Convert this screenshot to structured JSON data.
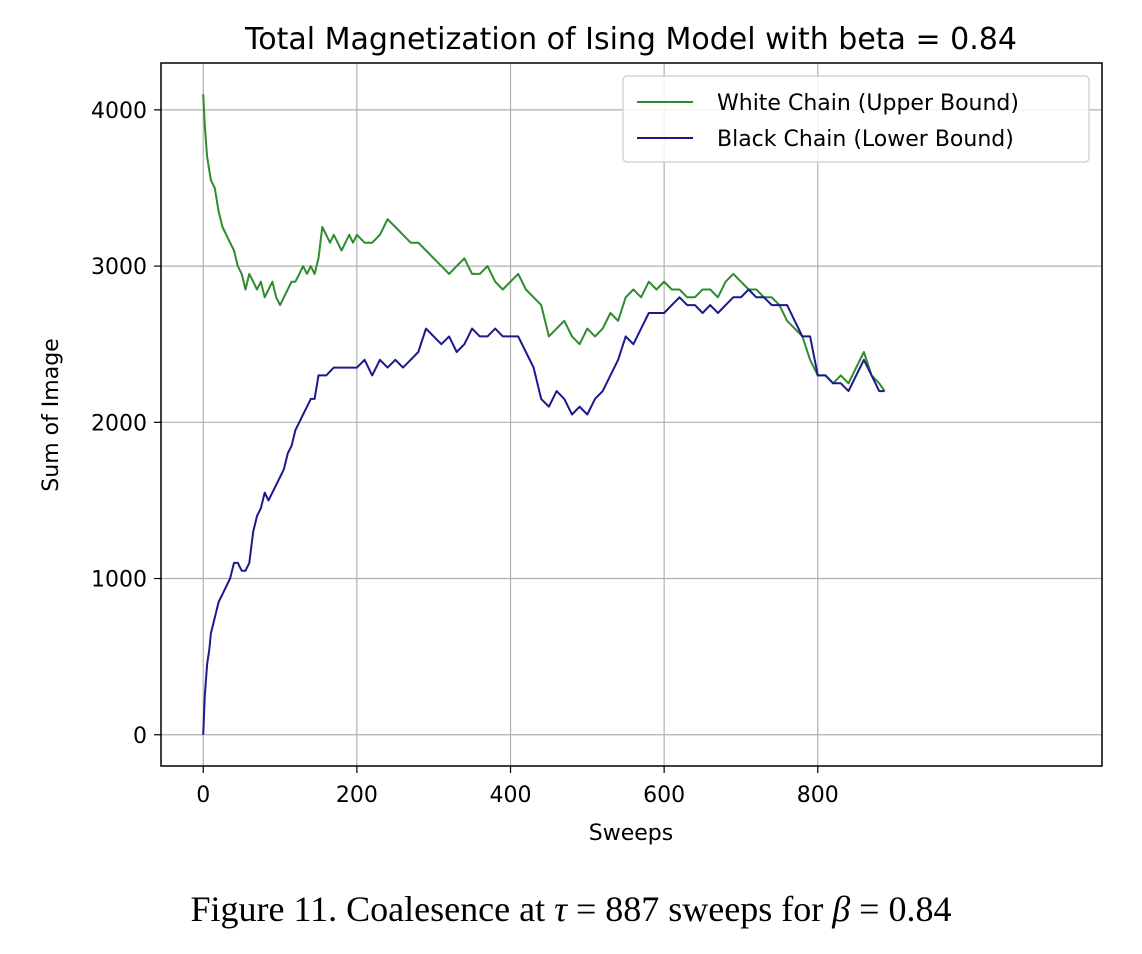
{
  "chart_data": {
    "type": "line",
    "title": "Total Magnetization of Ising Model with beta = 0.84",
    "xlabel": "Sweeps",
    "ylabel": "Sum of Image",
    "xlim": [
      -55,
      1170
    ],
    "ylim": [
      -200,
      4300
    ],
    "xticks": [
      0,
      200,
      400,
      600,
      800
    ],
    "yticks": [
      0,
      1000,
      2000,
      3000,
      4000
    ],
    "grid": true,
    "legend_position": "top-right",
    "series": [
      {
        "name": "White Chain (Upper Bound)",
        "color": "#2e8b2e",
        "x": [
          0,
          2,
          5,
          10,
          15,
          20,
          25,
          30,
          35,
          40,
          45,
          50,
          55,
          60,
          65,
          70,
          75,
          80,
          85,
          90,
          95,
          100,
          105,
          110,
          115,
          120,
          125,
          130,
          135,
          140,
          145,
          150,
          155,
          160,
          165,
          170,
          175,
          180,
          185,
          190,
          195,
          200,
          210,
          220,
          230,
          240,
          250,
          260,
          270,
          280,
          290,
          300,
          310,
          320,
          330,
          340,
          350,
          360,
          370,
          380,
          390,
          400,
          410,
          420,
          430,
          440,
          450,
          460,
          470,
          480,
          490,
          500,
          510,
          520,
          530,
          540,
          550,
          560,
          570,
          580,
          590,
          600,
          610,
          620,
          630,
          640,
          650,
          660,
          670,
          680,
          690,
          700,
          710,
          720,
          730,
          740,
          750,
          760,
          770,
          780,
          790,
          800,
          810,
          820,
          830,
          840,
          850,
          860,
          870,
          880,
          887
        ],
        "values": [
          4100,
          3900,
          3700,
          3550,
          3500,
          3350,
          3250,
          3200,
          3150,
          3100,
          3000,
          2950,
          2850,
          2950,
          2900,
          2850,
          2900,
          2800,
          2850,
          2900,
          2800,
          2750,
          2800,
          2850,
          2900,
          2900,
          2950,
          3000,
          2950,
          3000,
          2950,
          3050,
          3250,
          3200,
          3150,
          3200,
          3150,
          3100,
          3150,
          3200,
          3150,
          3200,
          3150,
          3150,
          3200,
          3300,
          3250,
          3200,
          3150,
          3150,
          3100,
          3050,
          3000,
          2950,
          3000,
          3050,
          2950,
          2950,
          3000,
          2900,
          2850,
          2900,
          2950,
          2850,
          2800,
          2750,
          2550,
          2600,
          2650,
          2550,
          2500,
          2600,
          2550,
          2600,
          2700,
          2650,
          2800,
          2850,
          2800,
          2900,
          2850,
          2900,
          2850,
          2850,
          2800,
          2800,
          2850,
          2850,
          2800,
          2900,
          2950,
          2900,
          2850,
          2850,
          2800,
          2800,
          2750,
          2650,
          2600,
          2550,
          2400,
          2300,
          2300,
          2250,
          2300,
          2250,
          2350,
          2450,
          2300,
          2250,
          2200
        ]
      },
      {
        "name": "Black Chain (Lower Bound)",
        "color": "#1a1a8c",
        "x": [
          0,
          2,
          5,
          8,
          10,
          15,
          20,
          25,
          30,
          35,
          40,
          45,
          50,
          55,
          60,
          65,
          70,
          75,
          80,
          85,
          90,
          95,
          100,
          105,
          110,
          115,
          120,
          125,
          130,
          135,
          140,
          145,
          150,
          155,
          160,
          170,
          180,
          190,
          200,
          210,
          220,
          230,
          240,
          250,
          260,
          270,
          280,
          290,
          300,
          310,
          320,
          330,
          340,
          350,
          360,
          370,
          380,
          390,
          400,
          410,
          420,
          430,
          440,
          450,
          460,
          470,
          480,
          490,
          500,
          510,
          520,
          530,
          540,
          550,
          560,
          570,
          580,
          590,
          600,
          610,
          620,
          630,
          640,
          650,
          660,
          670,
          680,
          690,
          700,
          710,
          720,
          730,
          740,
          750,
          760,
          770,
          780,
          790,
          800,
          810,
          820,
          830,
          840,
          850,
          860,
          870,
          880,
          887
        ],
        "values": [
          0,
          250,
          450,
          550,
          650,
          750,
          850,
          900,
          950,
          1000,
          1100,
          1100,
          1050,
          1050,
          1100,
          1300,
          1400,
          1450,
          1550,
          1500,
          1550,
          1600,
          1650,
          1700,
          1800,
          1850,
          1950,
          2000,
          2050,
          2100,
          2150,
          2150,
          2300,
          2300,
          2300,
          2350,
          2350,
          2350,
          2350,
          2400,
          2300,
          2400,
          2350,
          2400,
          2350,
          2400,
          2450,
          2600,
          2550,
          2500,
          2550,
          2450,
          2500,
          2600,
          2550,
          2550,
          2600,
          2550,
          2550,
          2550,
          2450,
          2350,
          2150,
          2100,
          2200,
          2150,
          2050,
          2100,
          2050,
          2150,
          2200,
          2300,
          2400,
          2550,
          2500,
          2600,
          2700,
          2700,
          2700,
          2750,
          2800,
          2750,
          2750,
          2700,
          2750,
          2700,
          2750,
          2800,
          2800,
          2850,
          2800,
          2800,
          2750,
          2750,
          2750,
          2650,
          2550,
          2550,
          2300,
          2300,
          2250,
          2250,
          2200,
          2300,
          2400,
          2300,
          2200,
          2200
        ]
      }
    ]
  },
  "caption": {
    "prefix": "Figure 11. Coalesence at ",
    "tau_symbol": "τ",
    "tau_equals": " = 887 sweeps for ",
    "beta_symbol": "β",
    "beta_equals": " = 0.84"
  }
}
